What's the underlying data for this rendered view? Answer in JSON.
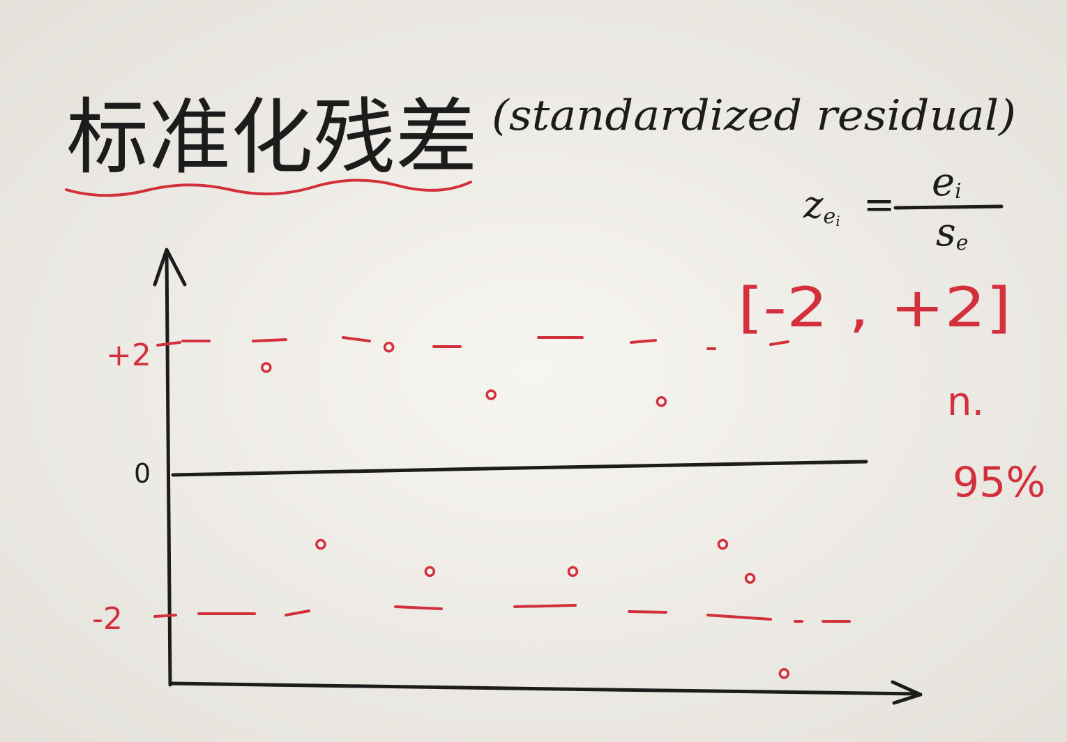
{
  "colors": {
    "ink": "#1c1c1c",
    "red": "#d2303c",
    "paper": "#f4f2ed",
    "paper_edge": "#e4e1db"
  },
  "chart_data": {
    "type": "scatter",
    "title": "标准化残差",
    "subtitle": "(standardized residual)",
    "xlim": [
      0,
      11
    ],
    "ylim": [
      -3,
      3.3
    ],
    "grid": false,
    "legend": "none",
    "yticks": [
      {
        "value": 2,
        "label": "+2"
      },
      {
        "value": 0,
        "label": "0"
      },
      {
        "value": -2,
        "label": "-2"
      }
    ],
    "reference_lines": [
      {
        "y": 2,
        "style": "dashed",
        "color": "#d2303c"
      },
      {
        "y": 0,
        "style": "solid",
        "color": "#1c1c1c"
      },
      {
        "y": -2,
        "style": "dashed",
        "color": "#d2303c"
      }
    ],
    "series": [
      {
        "marker": "open-circle",
        "color": "#d2303c",
        "points": [
          {
            "x": 1.4,
            "y": 1.6
          },
          {
            "x": 3.2,
            "y": 1.9
          },
          {
            "x": 4.7,
            "y": 1.2
          },
          {
            "x": 7.2,
            "y": 1.1
          },
          {
            "x": 2.2,
            "y": -1.0
          },
          {
            "x": 3.8,
            "y": -1.4
          },
          {
            "x": 5.9,
            "y": -1.4
          },
          {
            "x": 8.1,
            "y": -1.0
          },
          {
            "x": 8.5,
            "y": -1.5
          },
          {
            "x": 9.0,
            "y": -2.9
          }
        ]
      }
    ],
    "annotations": {
      "formula": {
        "lhs": "z",
        "lhs_sub": "e",
        "lhs_sub2": "i",
        "equals": "=",
        "numerator": "e",
        "numerator_sub": "i",
        "denominator": "s",
        "denominator_sub": "e"
      },
      "interval": "[-2 , +2]",
      "count_note": "n.",
      "percent_note": "95%"
    }
  }
}
